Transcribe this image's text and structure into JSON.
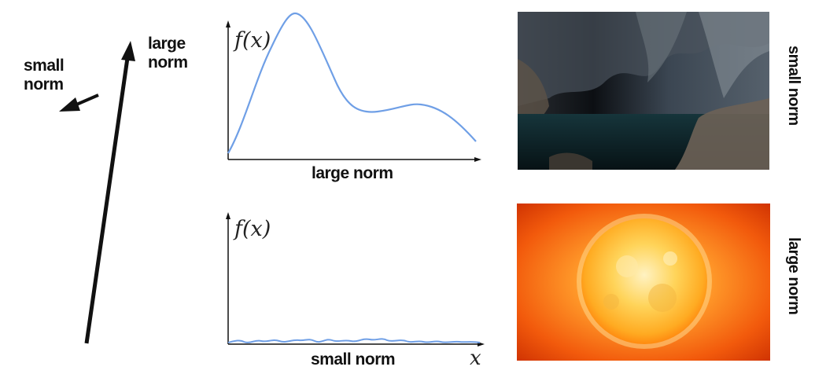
{
  "vectors": {
    "small_vector_label": "small\nnorm",
    "large_vector_label": "large\nnorm"
  },
  "top_plot": {
    "y_label": "f(x)",
    "caption": "large norm"
  },
  "bottom_plot": {
    "y_label": "f(x)",
    "caption": "small norm",
    "x_label": "x"
  },
  "images": {
    "top_caption": "small norm",
    "bottom_caption": "large norm",
    "top_image": "dark-cave-photo",
    "bottom_image": "bright-sun-photo"
  },
  "colors": {
    "curve": "#6f9fe6",
    "axes": "#111111"
  }
}
